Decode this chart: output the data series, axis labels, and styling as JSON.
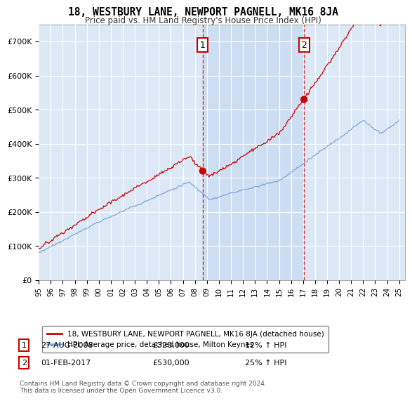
{
  "title": "18, WESTBURY LANE, NEWPORT PAGNELL, MK16 8JA",
  "subtitle": "Price paid vs. HM Land Registry's House Price Index (HPI)",
  "ylabel_ticks": [
    0,
    100000,
    200000,
    300000,
    400000,
    500000,
    600000,
    700000
  ],
  "ylim": [
    0,
    750000
  ],
  "xlim_start": 1995.0,
  "xlim_end": 2025.5,
  "sale1_x": 2008.65,
  "sale1_y": 320000,
  "sale1_label": "1",
  "sale1_date": "27-AUG-2008",
  "sale1_price": "£320,000",
  "sale1_hpi": "12% ↑ HPI",
  "sale2_x": 2017.08,
  "sale2_y": 530000,
  "sale2_label": "2",
  "sale2_date": "01-FEB-2017",
  "sale2_price": "£530,000",
  "sale2_hpi": "25% ↑ HPI",
  "line_color_red": "#cc0000",
  "line_color_blue": "#7aaadd",
  "dashed_color": "#cc0000",
  "marker_box_color": "#cc0000",
  "legend_label_red": "18, WESTBURY LANE, NEWPORT PAGNELL, MK16 8JA (detached house)",
  "legend_label_blue": "HPI: Average price, detached house, Milton Keynes",
  "footer": "Contains HM Land Registry data © Crown copyright and database right 2024.\nThis data is licensed under the Open Government Licence v3.0.",
  "background_color": "#ffffff",
  "plot_bg_color": "#dce8f5",
  "shade_color": "#c5d8f0",
  "grid_color": "#ffffff"
}
